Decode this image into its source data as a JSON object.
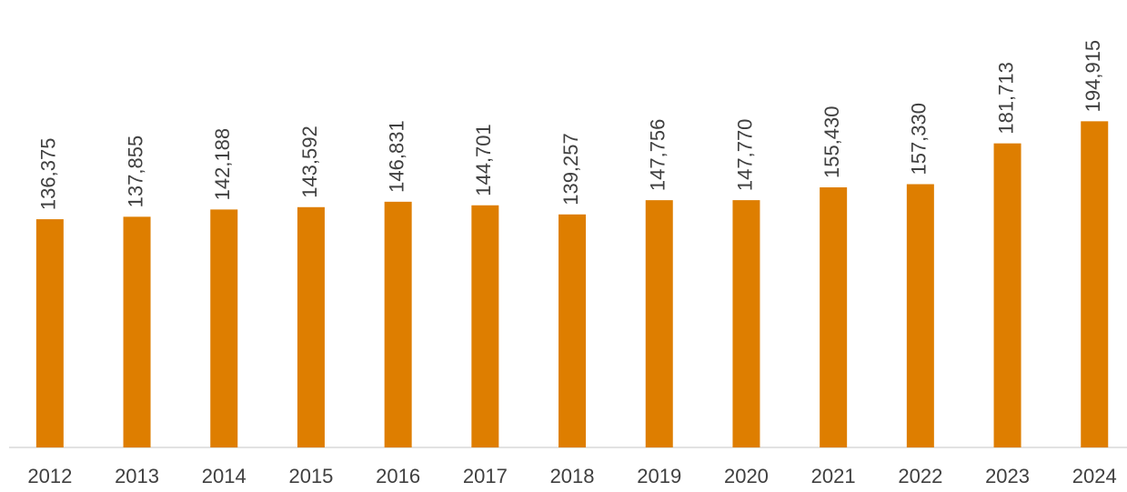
{
  "chart_data": {
    "type": "bar",
    "categories": [
      "2012",
      "2013",
      "2014",
      "2015",
      "2016",
      "2017",
      "2018",
      "2019",
      "2020",
      "2021",
      "2022",
      "2023",
      "2024"
    ],
    "values": [
      136375,
      137855,
      142188,
      143592,
      146831,
      144701,
      139257,
      147756,
      147770,
      155430,
      157330,
      181713,
      194915
    ],
    "value_labels": [
      "136,375",
      "137,855",
      "142,188",
      "143,592",
      "146,831",
      "144,701",
      "139,257",
      "147,756",
      "147,770",
      "155,430",
      "157,330",
      "181,713",
      "194,915"
    ],
    "color": "#de7e00",
    "ylim": [
      0,
      250000
    ]
  }
}
